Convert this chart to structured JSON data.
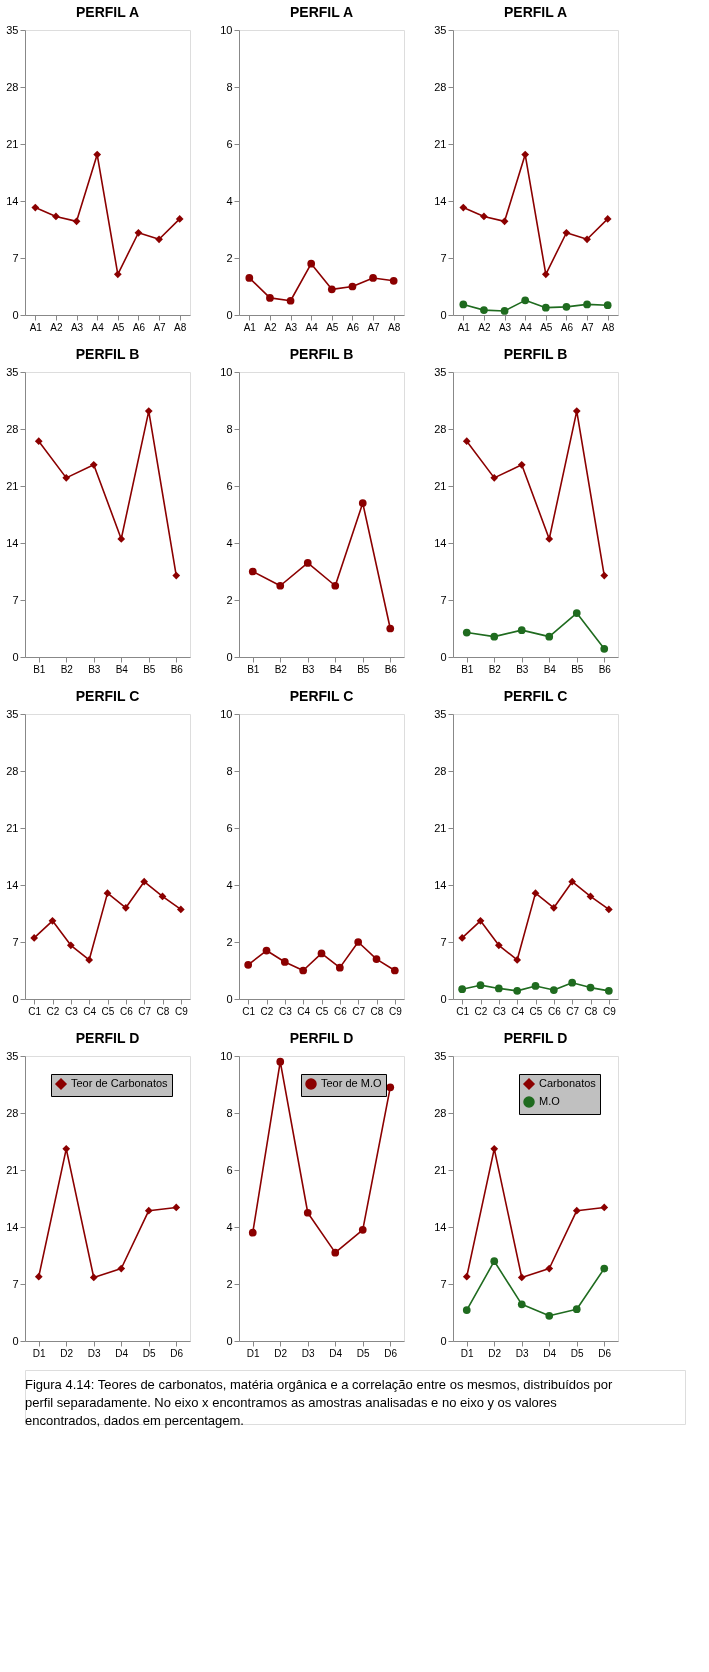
{
  "chart_data": [
    {
      "type": "line",
      "title": "PERFIL A",
      "categories": [
        "A1",
        "A2",
        "A3",
        "A4",
        "A5",
        "A6",
        "A7",
        "A8"
      ],
      "ylim": [
        0,
        35
      ],
      "yticks": [
        0,
        7,
        14,
        21,
        28,
        35
      ],
      "grid": false,
      "legend": false,
      "series": [
        {
          "color": "#8b0000",
          "marker": "diamond",
          "values": [
            13.2,
            12.1,
            11.5,
            19.7,
            5.0,
            10.1,
            9.3,
            11.8
          ]
        }
      ],
      "annotations": [
        "Figura 4.14: Teores de carbonatos, matéria orgânica e a correlação entre os mesmos, distribuídos por perfil separadamente. No eixo x encontramos as amostras analisadas e no eixo y os valores encontrados, dados em percentagem."
      ]
    },
    {
      "type": "line",
      "title": "PERFIL A",
      "categories": [
        "A1",
        "A2",
        "A3",
        "A4",
        "A5",
        "A6",
        "A7",
        "A8"
      ],
      "ylim": [
        0,
        10
      ],
      "yticks": [
        0,
        2,
        4,
        6,
        8,
        10
      ],
      "grid": false,
      "legend": false,
      "series": [
        {
          "color": "#8b0000",
          "marker": "circle",
          "values": [
            1.3,
            0.6,
            0.5,
            1.8,
            0.9,
            1.0,
            1.3,
            1.2
          ]
        }
      ]
    },
    {
      "type": "line",
      "title": "PERFIL A",
      "categories": [
        "A1",
        "A2",
        "A3",
        "A4",
        "A5",
        "A6",
        "A7",
        "A8"
      ],
      "ylim": [
        0,
        35
      ],
      "yticks": [
        0,
        7,
        14,
        21,
        28,
        35
      ],
      "grid": false,
      "legend": false,
      "series": [
        {
          "color": "#8b0000",
          "marker": "diamond",
          "values": [
            13.2,
            12.1,
            11.5,
            19.7,
            5.0,
            10.1,
            9.3,
            11.8
          ]
        },
        {
          "color": "#1f6b1f",
          "marker": "circle",
          "values": [
            1.3,
            0.6,
            0.5,
            1.8,
            0.9,
            1.0,
            1.3,
            1.2
          ]
        }
      ]
    },
    {
      "type": "line",
      "title": "PERFIL B",
      "categories": [
        "B1",
        "B2",
        "B3",
        "B4",
        "B5",
        "B6"
      ],
      "ylim": [
        0,
        35
      ],
      "yticks": [
        0,
        7,
        14,
        21,
        28,
        35
      ],
      "grid": false,
      "legend": false,
      "series": [
        {
          "color": "#8b0000",
          "marker": "diamond",
          "values": [
            26.5,
            22.0,
            23.6,
            14.5,
            30.2,
            10.0
          ]
        }
      ]
    },
    {
      "type": "line",
      "title": "PERFIL B",
      "categories": [
        "B1",
        "B2",
        "B3",
        "B4",
        "B5",
        "B6"
      ],
      "ylim": [
        0,
        10
      ],
      "yticks": [
        0,
        2,
        4,
        6,
        8,
        10
      ],
      "grid": false,
      "legend": false,
      "series": [
        {
          "color": "#8b0000",
          "marker": "circle",
          "values": [
            3.0,
            2.5,
            3.3,
            2.5,
            5.4,
            1.0
          ]
        }
      ]
    },
    {
      "type": "line",
      "title": "PERFIL B",
      "categories": [
        "B1",
        "B2",
        "B3",
        "B4",
        "B5",
        "B6"
      ],
      "ylim": [
        0,
        35
      ],
      "yticks": [
        0,
        7,
        14,
        21,
        28,
        35
      ],
      "grid": false,
      "legend": false,
      "series": [
        {
          "color": "#8b0000",
          "marker": "diamond",
          "values": [
            26.5,
            22.0,
            23.6,
            14.5,
            30.2,
            10.0
          ]
        },
        {
          "color": "#1f6b1f",
          "marker": "circle",
          "values": [
            3.0,
            2.5,
            3.3,
            2.5,
            5.4,
            1.0
          ]
        }
      ]
    },
    {
      "type": "line",
      "title": "PERFIL C",
      "categories": [
        "C1",
        "C2",
        "C3",
        "C4",
        "C5",
        "C6",
        "C7",
        "C8",
        "C9"
      ],
      "ylim": [
        0,
        35
      ],
      "yticks": [
        0,
        7,
        14,
        21,
        28,
        35
      ],
      "grid": false,
      "legend": false,
      "series": [
        {
          "color": "#8b0000",
          "marker": "diamond",
          "values": [
            7.5,
            9.6,
            6.6,
            4.8,
            13.0,
            11.2,
            14.4,
            12.6,
            11.0
          ]
        }
      ]
    },
    {
      "type": "line",
      "title": "PERFIL C",
      "categories": [
        "C1",
        "C2",
        "C3",
        "C4",
        "C5",
        "C6",
        "C7",
        "C8",
        "C9"
      ],
      "ylim": [
        0,
        10
      ],
      "yticks": [
        0,
        2,
        4,
        6,
        8,
        10
      ],
      "grid": false,
      "legend": false,
      "series": [
        {
          "color": "#8b0000",
          "marker": "circle",
          "values": [
            1.2,
            1.7,
            1.3,
            1.0,
            1.6,
            1.1,
            2.0,
            1.4,
            1.0
          ]
        }
      ]
    },
    {
      "type": "line",
      "title": "PERFIL C",
      "categories": [
        "C1",
        "C2",
        "C3",
        "C4",
        "C5",
        "C6",
        "C7",
        "C8",
        "C9"
      ],
      "ylim": [
        0,
        35
      ],
      "yticks": [
        0,
        7,
        14,
        21,
        28,
        35
      ],
      "grid": false,
      "legend": false,
      "series": [
        {
          "color": "#8b0000",
          "marker": "diamond",
          "values": [
            7.5,
            9.6,
            6.6,
            4.8,
            13.0,
            11.2,
            14.4,
            12.6,
            11.0
          ]
        },
        {
          "color": "#1f6b1f",
          "marker": "circle",
          "values": [
            1.2,
            1.7,
            1.3,
            1.0,
            1.6,
            1.1,
            2.0,
            1.4,
            1.0
          ]
        }
      ]
    },
    {
      "type": "line",
      "title": "PERFIL D",
      "categories": [
        "D1",
        "D2",
        "D3",
        "D4",
        "D5",
        "D6"
      ],
      "ylim": [
        0,
        35
      ],
      "yticks": [
        0,
        7,
        14,
        21,
        28,
        35
      ],
      "grid": false,
      "legend": "top right",
      "series": [
        {
          "name": "Teor de Carbonatos",
          "color": "#8b0000",
          "marker": "diamond",
          "values": [
            7.9,
            23.6,
            7.8,
            8.9,
            16.0,
            16.4
          ]
        }
      ]
    },
    {
      "type": "line",
      "title": "PERFIL D",
      "categories": [
        "D1",
        "D2",
        "D3",
        "D4",
        "D5",
        "D6"
      ],
      "ylim": [
        0,
        10
      ],
      "yticks": [
        0,
        2,
        4,
        6,
        8,
        10
      ],
      "grid": false,
      "legend": "top right",
      "series": [
        {
          "name": "Teor de M.O",
          "color": "#8b0000",
          "marker": "circle",
          "values": [
            3.8,
            9.8,
            4.5,
            3.1,
            3.9,
            8.9
          ]
        }
      ]
    },
    {
      "type": "line",
      "title": "PERFIL D",
      "categories": [
        "D1",
        "D2",
        "D3",
        "D4",
        "D5",
        "D6"
      ],
      "ylim": [
        0,
        35
      ],
      "yticks": [
        0,
        7,
        14,
        21,
        28,
        35
      ],
      "grid": false,
      "legend": "top right",
      "series": [
        {
          "name": "Carbonatos",
          "color": "#8b0000",
          "marker": "diamond",
          "values": [
            7.9,
            23.6,
            7.8,
            8.9,
            16.0,
            16.4
          ]
        },
        {
          "name": "M.O",
          "color": "#1f6b1f",
          "marker": "circle",
          "values": [
            3.8,
            9.8,
            4.5,
            3.1,
            3.9,
            8.9
          ]
        }
      ]
    }
  ]
}
